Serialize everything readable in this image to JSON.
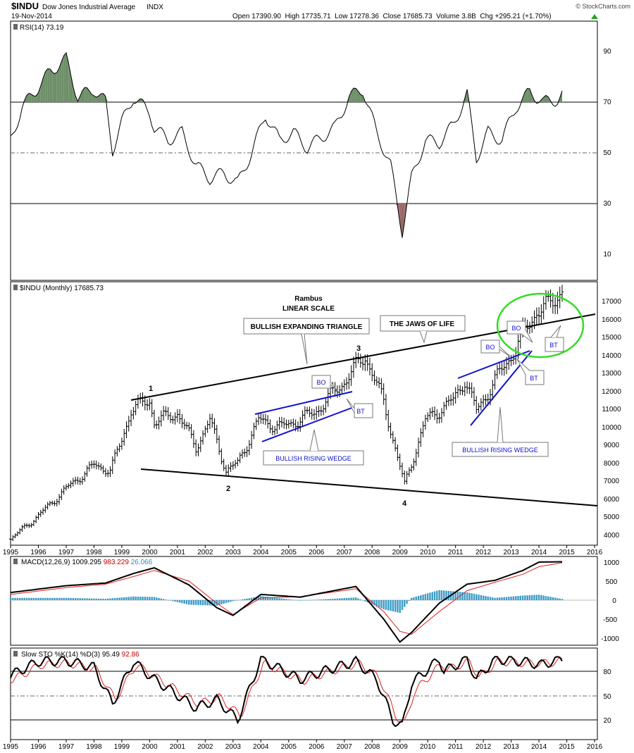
{
  "header": {
    "symbol": "$INDU",
    "name": "Dow Jones Industrial Average",
    "exchange": "INDX",
    "date": "19-Nov-2014",
    "ohlc": "Open 17390.90  High 17735.71  Low 17278.36  Close 17685.73  Volume 3.8B  Chg +295.21 (+1.70%)",
    "credit": "© StockCharts.com",
    "change_icon": "triangle-up-icon"
  },
  "rsi_panel": {
    "label": "RSI(14) 73.19",
    "ticks": [
      "90",
      "70",
      "50",
      "30",
      "10"
    ]
  },
  "price_panel": {
    "label": "$INDU (Monthly) 17685.73",
    "ticks": [
      "17000",
      "16000",
      "15000",
      "14000",
      "13000",
      "12000",
      "11000",
      "10000",
      "9000",
      "8000",
      "7000",
      "6000",
      "5000",
      "4000"
    ]
  },
  "years": [
    "1995",
    "1996",
    "1997",
    "1998",
    "1999",
    "2000",
    "2001",
    "2002",
    "2003",
    "2004",
    "2005",
    "2006",
    "2007",
    "2008",
    "2009",
    "2010",
    "2011",
    "2012",
    "2013",
    "2014",
    "2015",
    "2016"
  ],
  "annotations": {
    "rambus": "Rambus",
    "linear": "LINEAR SCALE",
    "triangle": "BULLISH EXPANDING TRIANGLE",
    "jaws": "THE JAWS OF LIFE",
    "wedge1": "BULLISH RISING WEDGE",
    "wedge2": "BULLISH RISING WEDGE",
    "bo": "BO",
    "bt": "BT",
    "p1": "1",
    "p2": "2",
    "p3": "3",
    "p4": "4"
  },
  "macd_panel": {
    "label_name": "MACD(12,26,9)",
    "v1": "1009.295",
    "v2": "983.229",
    "v3": "26.066",
    "ticks": [
      "1000",
      "500",
      "0",
      "-500",
      "-1000"
    ]
  },
  "sto_panel": {
    "label_name": "Slow STO %K(14) %D(3)",
    "v1": "95.49",
    "v2": "92.86",
    "ticks": [
      "80",
      "50",
      "20"
    ]
  },
  "colors": {
    "rsi_up": "#6f8f6a",
    "rsi_down": "#9a6a6a",
    "trend": "#000000",
    "wedge": "#1010d0",
    "circle": "#33dd22",
    "macd_signal": "#e02020",
    "macd_hist": "#3b9cc7",
    "v2_text": "#c00000",
    "v3_text": "#2a8fb5"
  },
  "chart_data": [
    {
      "type": "line",
      "title": "RSI(14) 73.19",
      "ylim": [
        0,
        100
      ],
      "x": [
        "1995-01",
        "1995-06",
        "1996-01",
        "1996-06",
        "1997-01",
        "1997-06",
        "1998-01",
        "1998-06",
        "1998-09",
        "1999-01",
        "1999-06",
        "2000-01",
        "2000-03",
        "2000-09",
        "2001-03",
        "2001-09",
        "2002-03",
        "2002-09",
        "2003-03",
        "2003-09",
        "2004-03",
        "2004-09",
        "2005-03",
        "2005-09",
        "2006-03",
        "2006-09",
        "2007-03",
        "2007-09",
        "2008-03",
        "2008-09",
        "2009-02",
        "2009-06",
        "2009-12",
        "2010-06",
        "2010-12",
        "2011-06",
        "2011-10",
        "2012-03",
        "2012-09",
        "2013-03",
        "2013-09",
        "2014-03",
        "2014-09",
        "2014-11"
      ],
      "values": [
        55,
        68,
        76,
        82,
        87,
        72,
        75,
        70,
        51,
        62,
        72,
        66,
        60,
        55,
        58,
        45,
        40,
        42,
        38,
        50,
        65,
        55,
        58,
        52,
        56,
        60,
        72,
        75,
        58,
        45,
        19,
        40,
        55,
        54,
        61,
        73,
        48,
        58,
        55,
        68,
        74,
        70,
        71,
        73
      ]
    },
    {
      "type": "line",
      "title": "$INDU (Monthly) 17685.73",
      "ylim": [
        3500,
        17800
      ],
      "x": [
        "1995-01",
        "1996-01",
        "1997-01",
        "1998-01",
        "1998-08",
        "1999-01",
        "1999-05",
        "2000-01",
        "2000-03",
        "2001-01",
        "2001-09",
        "2002-03",
        "2002-10",
        "2003-03",
        "2003-12",
        "2004-10",
        "2005-12",
        "2006-12",
        "2007-10",
        "2008-06",
        "2009-03",
        "2009-12",
        "2010-12",
        "2011-05",
        "2011-10",
        "2012-06",
        "2013-01",
        "2013-12",
        "2014-05",
        "2014-11"
      ],
      "values": [
        3800,
        5100,
        6600,
        7900,
        7600,
        9300,
        11000,
        11500,
        10300,
        10800,
        8900,
        10400,
        7600,
        8000,
        10400,
        10000,
        10800,
        12400,
        14000,
        11400,
        6800,
        10400,
        11500,
        12700,
        10900,
        12600,
        14000,
        16500,
        16700,
        17700
      ],
      "annotations": [
        "Rambus",
        "LINEAR SCALE",
        "BULLISH EXPANDING TRIANGLE",
        "THE JAWS OF LIFE",
        "BULLISH RISING WEDGE",
        "BO",
        "BT",
        "1",
        "2",
        "3",
        "4"
      ]
    },
    {
      "type": "line",
      "title": "MACD(12,26,9)",
      "ylim": [
        -1150,
        1100
      ],
      "x": [
        "1995-01",
        "1997-01",
        "1998-06",
        "1999-06",
        "2000-03",
        "2001-06",
        "2002-06",
        "2003-01",
        "2004-01",
        "2005-06",
        "2007-06",
        "2008-06",
        "2009-01",
        "2009-06",
        "2010-06",
        "2011-06",
        "2012-06",
        "2013-06",
        "2014-01",
        "2014-11"
      ],
      "series": [
        {
          "name": "MACD",
          "values": [
            200,
            380,
            450,
            700,
            850,
            400,
            -200,
            -400,
            150,
            80,
            360,
            -500,
            -1100,
            -850,
            -80,
            420,
            520,
            780,
            1000,
            1009.295
          ]
        },
        {
          "name": "Signal",
          "values": [
            150,
            330,
            420,
            620,
            780,
            500,
            -80,
            -380,
            60,
            90,
            300,
            -300,
            -820,
            -900,
            -300,
            250,
            470,
            680,
            880,
            983.229
          ]
        }
      ]
    },
    {
      "type": "line",
      "title": "Slow STO %K(14) %D(3)",
      "ylim": [
        0,
        100
      ],
      "x": [
        "1995-01",
        "1996-01",
        "1997-01",
        "1998-01",
        "1998-09",
        "1999-06",
        "2000-03",
        "2001-09",
        "2002-06",
        "2003-03",
        "2004-01",
        "2005-06",
        "2006-06",
        "2007-06",
        "2008-03",
        "2008-10",
        "2009-02",
        "2009-06",
        "2010-06",
        "2010-08",
        "2011-06",
        "2011-10",
        "2012-06",
        "2013-06",
        "2014-02",
        "2014-11"
      ],
      "series": [
        {
          "name": "%K",
          "values": [
            75,
            92,
            93,
            85,
            40,
            92,
            70,
            35,
            45,
            20,
            95,
            70,
            82,
            92,
            70,
            20,
            12,
            65,
            95,
            80,
            95,
            70,
            95,
            92,
            88,
            95.49
          ]
        },
        {
          "name": "%D",
          "values": [
            70,
            88,
            90,
            82,
            45,
            88,
            72,
            40,
            48,
            25,
            90,
            68,
            80,
            90,
            72,
            25,
            15,
            55,
            90,
            82,
            92,
            72,
            92,
            90,
            90,
            92.86
          ]
        }
      ]
    }
  ]
}
